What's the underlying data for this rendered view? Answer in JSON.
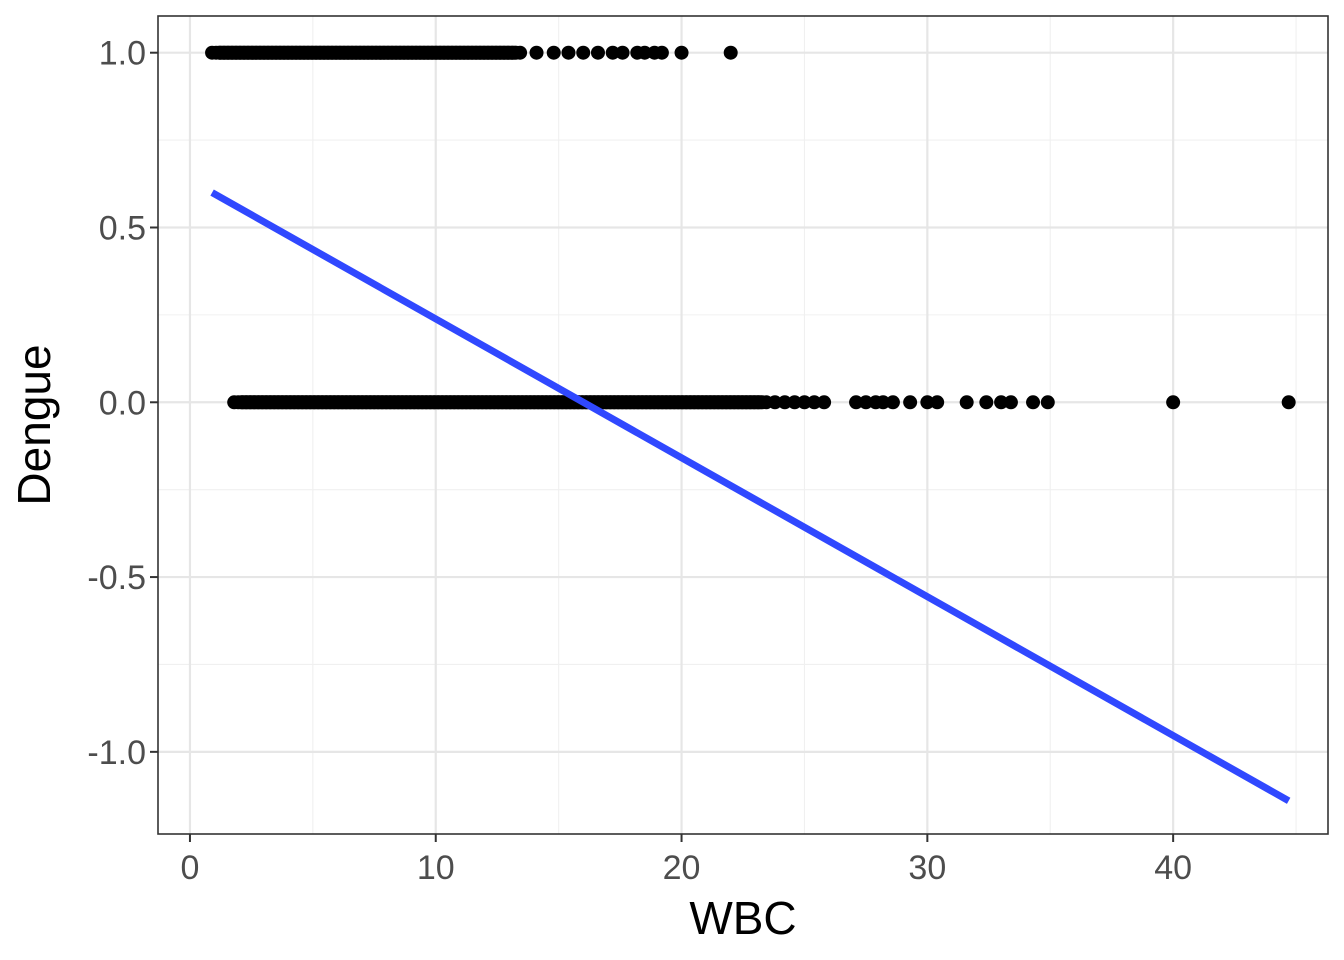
{
  "chart_data": {
    "type": "scatter",
    "xlabel": "WBC",
    "ylabel": "Dengue",
    "xlim": [
      -1.3,
      46.3
    ],
    "ylim": [
      -1.235,
      1.105
    ],
    "x_ticks": [
      0,
      10,
      20,
      30,
      40
    ],
    "x_tick_labels": [
      "0",
      "10",
      "20",
      "30",
      "40"
    ],
    "y_ticks": [
      -1.0,
      -0.5,
      0.0,
      0.5,
      1.0
    ],
    "y_tick_labels": [
      "-1.0",
      "-0.5",
      "0.0",
      "0.5",
      "1.0"
    ],
    "grid": true,
    "point_color": "#000000",
    "line_color": "#3048FF",
    "series": [
      {
        "type": "scatter",
        "dense_ranges": [
          {
            "y": 1,
            "x_start": 0.9,
            "x_end": 13.5
          },
          {
            "y": 0,
            "x_start": 1.8,
            "x_end": 23.5
          }
        ],
        "points": [
          {
            "x": 14.1,
            "y": 1
          },
          {
            "x": 14.8,
            "y": 1
          },
          {
            "x": 15.4,
            "y": 1
          },
          {
            "x": 16.0,
            "y": 1
          },
          {
            "x": 16.6,
            "y": 1
          },
          {
            "x": 17.2,
            "y": 1
          },
          {
            "x": 17.6,
            "y": 1
          },
          {
            "x": 18.2,
            "y": 1
          },
          {
            "x": 18.5,
            "y": 1
          },
          {
            "x": 18.9,
            "y": 1
          },
          {
            "x": 19.2,
            "y": 1
          },
          {
            "x": 20.0,
            "y": 1
          },
          {
            "x": 22.0,
            "y": 1
          },
          {
            "x": 23.8,
            "y": 0
          },
          {
            "x": 24.2,
            "y": 0
          },
          {
            "x": 24.6,
            "y": 0
          },
          {
            "x": 25.0,
            "y": 0
          },
          {
            "x": 25.4,
            "y": 0
          },
          {
            "x": 25.8,
            "y": 0
          },
          {
            "x": 27.1,
            "y": 0
          },
          {
            "x": 27.5,
            "y": 0
          },
          {
            "x": 27.9,
            "y": 0
          },
          {
            "x": 28.2,
            "y": 0
          },
          {
            "x": 28.6,
            "y": 0
          },
          {
            "x": 29.3,
            "y": 0
          },
          {
            "x": 30.0,
            "y": 0
          },
          {
            "x": 30.4,
            "y": 0
          },
          {
            "x": 31.6,
            "y": 0
          },
          {
            "x": 32.4,
            "y": 0
          },
          {
            "x": 33.0,
            "y": 0
          },
          {
            "x": 33.4,
            "y": 0
          },
          {
            "x": 34.3,
            "y": 0
          },
          {
            "x": 34.9,
            "y": 0
          },
          {
            "x": 40.0,
            "y": 0
          },
          {
            "x": 44.7,
            "y": 0
          }
        ]
      },
      {
        "type": "line",
        "points": [
          {
            "x": 0.9,
            "y": 0.6
          },
          {
            "x": 44.7,
            "y": -1.14
          }
        ]
      }
    ]
  }
}
